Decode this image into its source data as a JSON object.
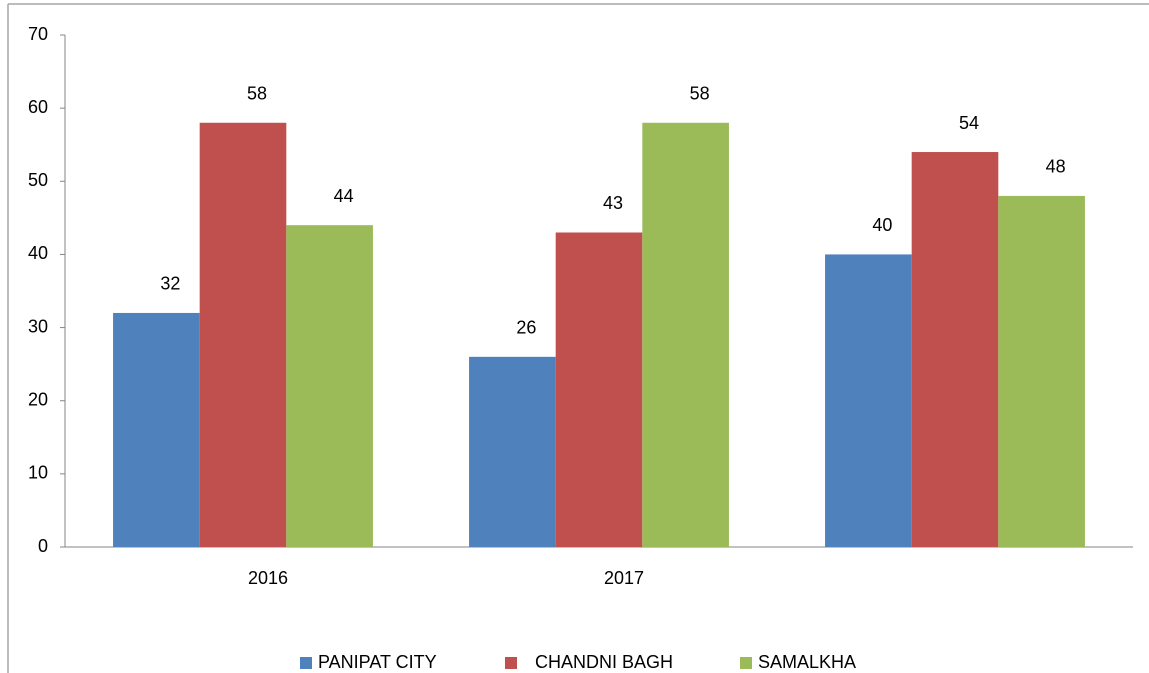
{
  "chart_data": {
    "type": "bar",
    "categories": [
      "2016",
      "2017",
      null
    ],
    "series": [
      {
        "name": "PANIPAT CITY",
        "color": "#4f81bd",
        "values": [
          32,
          26,
          40
        ]
      },
      {
        "name": "CHANDNI BAGH",
        "color": "#c0504d",
        "values": [
          58,
          43,
          54
        ]
      },
      {
        "name": "SAMALKHA",
        "color": "#9bbb59",
        "values": [
          44,
          58,
          48
        ]
      }
    ],
    "ylim": [
      0,
      70
    ],
    "yticks": [
      0,
      10,
      20,
      30,
      40,
      50,
      60,
      70
    ],
    "grid": false,
    "legend": "bottom"
  }
}
